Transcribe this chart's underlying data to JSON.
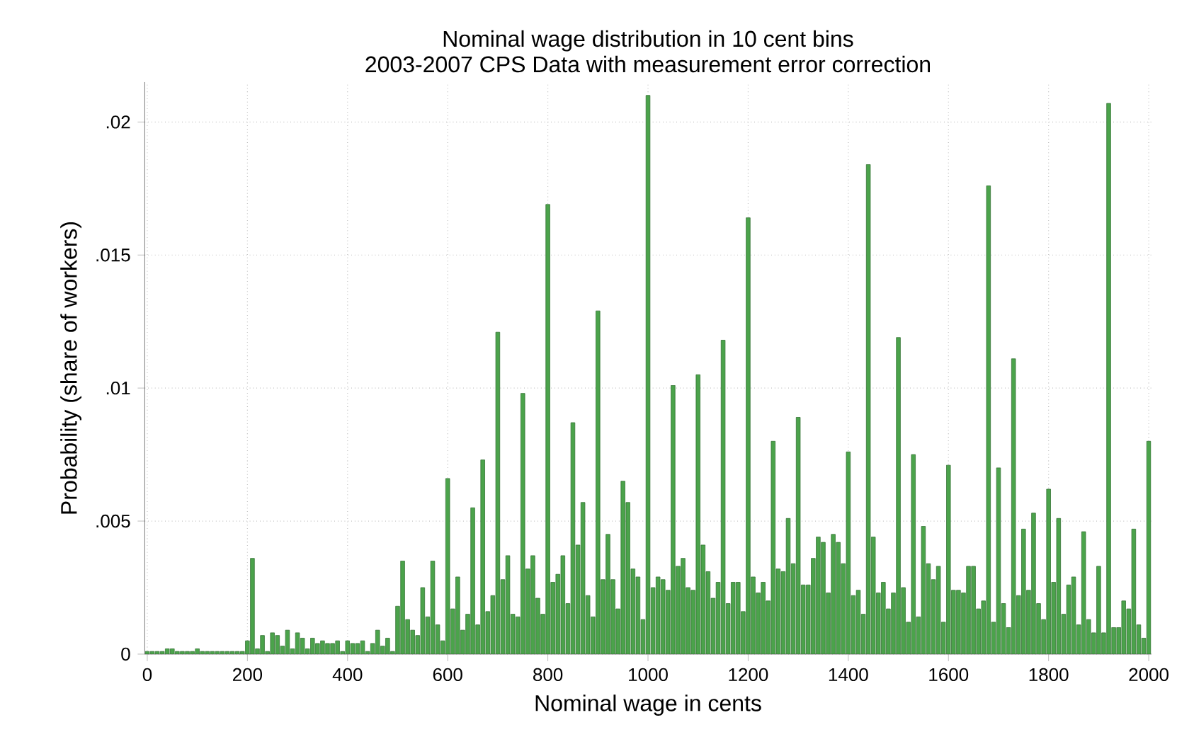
{
  "chart_data": {
    "type": "bar",
    "title": "Nominal wage distribution in 10 cent bins",
    "subtitle": "2003-2007 CPS Data with measurement error correction",
    "xlabel": "Nominal wage in cents",
    "ylabel": "Probability  (share of workers)",
    "x": [
      0,
      10,
      20,
      30,
      40,
      50,
      60,
      70,
      80,
      90,
      100,
      110,
      120,
      130,
      140,
      150,
      160,
      170,
      180,
      190,
      200,
      210,
      220,
      230,
      240,
      250,
      260,
      270,
      280,
      290,
      300,
      310,
      320,
      330,
      340,
      350,
      360,
      370,
      380,
      390,
      400,
      410,
      420,
      430,
      440,
      450,
      460,
      470,
      480,
      490,
      500,
      510,
      520,
      530,
      540,
      550,
      560,
      570,
      580,
      590,
      600,
      610,
      620,
      630,
      640,
      650,
      660,
      670,
      680,
      690,
      700,
      710,
      720,
      730,
      740,
      750,
      760,
      770,
      780,
      790,
      800,
      810,
      820,
      830,
      840,
      850,
      860,
      870,
      880,
      890,
      900,
      910,
      920,
      930,
      940,
      950,
      960,
      970,
      980,
      990,
      1000,
      1010,
      1020,
      1030,
      1040,
      1050,
      1060,
      1070,
      1080,
      1090,
      1100,
      1110,
      1120,
      1130,
      1140,
      1150,
      1160,
      1170,
      1180,
      1190,
      1200,
      1210,
      1220,
      1230,
      1240,
      1250,
      1260,
      1270,
      1280,
      1290,
      1300,
      1310,
      1320,
      1330,
      1340,
      1350,
      1360,
      1370,
      1380,
      1390,
      1400,
      1410,
      1420,
      1430,
      1440,
      1450,
      1460,
      1470,
      1480,
      1490,
      1500,
      1510,
      1520,
      1530,
      1540,
      1550,
      1560,
      1570,
      1580,
      1590,
      1600,
      1610,
      1620,
      1630,
      1640,
      1650,
      1660,
      1670,
      1680,
      1690,
      1700,
      1710,
      1720,
      1730,
      1740,
      1750,
      1760,
      1770,
      1780,
      1790,
      1800,
      1810,
      1820,
      1830,
      1840,
      1850,
      1860,
      1870,
      1880,
      1890,
      1900,
      1910,
      1920,
      1930,
      1940,
      1950,
      1960,
      1970,
      1980,
      1990,
      2000
    ],
    "values": [
      0.0001,
      0.0001,
      0.0001,
      0.0001,
      0.0002,
      0.0002,
      0.0001,
      0.0001,
      0.0001,
      0.0001,
      0.0002,
      0.0001,
      0.0001,
      0.0001,
      0.0001,
      0.0001,
      0.0001,
      0.0001,
      0.0001,
      0.0001,
      0.0005,
      0.0036,
      0.0002,
      0.0007,
      0.0001,
      0.0008,
      0.0007,
      0.0003,
      0.0009,
      0.0002,
      0.0008,
      0.0006,
      0.0002,
      0.0006,
      0.0004,
      0.0005,
      0.0004,
      0.0004,
      0.0005,
      0.0001,
      0.0005,
      0.0004,
      0.0004,
      0.0005,
      0.0001,
      0.0004,
      0.0009,
      0.0003,
      0.0006,
      0.0001,
      0.0018,
      0.0035,
      0.0013,
      0.0009,
      0.0007,
      0.0025,
      0.0014,
      0.0035,
      0.0011,
      0.0005,
      0.0066,
      0.0017,
      0.0029,
      0.0009,
      0.0015,
      0.0055,
      0.0011,
      0.0073,
      0.0016,
      0.0022,
      0.0121,
      0.0028,
      0.0037,
      0.0015,
      0.0014,
      0.0098,
      0.0032,
      0.0037,
      0.0021,
      0.0015,
      0.0169,
      0.0027,
      0.003,
      0.0037,
      0.0019,
      0.0087,
      0.0041,
      0.0057,
      0.0022,
      0.0014,
      0.0129,
      0.0028,
      0.0045,
      0.0028,
      0.0017,
      0.0065,
      0.0057,
      0.0032,
      0.0029,
      0.0013,
      0.021,
      0.0025,
      0.0029,
      0.0028,
      0.0024,
      0.0101,
      0.0033,
      0.0036,
      0.0025,
      0.0024,
      0.0105,
      0.0041,
      0.0031,
      0.0021,
      0.0027,
      0.0118,
      0.0019,
      0.0027,
      0.0027,
      0.0016,
      0.0164,
      0.0029,
      0.0023,
      0.0027,
      0.002,
      0.008,
      0.0032,
      0.0031,
      0.0051,
      0.0034,
      0.0089,
      0.0026,
      0.0026,
      0.0036,
      0.0044,
      0.0042,
      0.0023,
      0.0045,
      0.0042,
      0.0034,
      0.0076,
      0.0022,
      0.0024,
      0.0015,
      0.0184,
      0.0044,
      0.0023,
      0.0027,
      0.0017,
      0.0023,
      0.0119,
      0.0025,
      0.0012,
      0.0075,
      0.0014,
      0.0048,
      0.0034,
      0.0028,
      0.0033,
      0.0012,
      0.0071,
      0.0024,
      0.0024,
      0.0023,
      0.0033,
      0.0033,
      0.0017,
      0.002,
      0.0176,
      0.0012,
      0.007,
      0.0019,
      0.001,
      0.0111,
      0.0022,
      0.0047,
      0.0024,
      0.0053,
      0.0019,
      0.0013,
      0.0062,
      0.0027,
      0.0051,
      0.0015,
      0.0026,
      0.0029,
      0.0011,
      0.0046,
      0.0013,
      0.0008,
      0.0033,
      0.0008,
      0.0207,
      0.001,
      0.001,
      0.002,
      0.0017,
      0.0047,
      0.0011,
      0.0006,
      0.008
    ],
    "color": "#4ba34b",
    "xlim": [
      -5,
      2005
    ],
    "ylim": [
      0,
      0.0215
    ],
    "xticks": [
      0,
      200,
      400,
      600,
      800,
      1000,
      1200,
      1400,
      1600,
      1800,
      2000
    ],
    "yticks": [
      0,
      {
        "value": 0.005,
        "label": ".005"
      },
      {
        "value": 0.01,
        "label": ".01"
      },
      {
        "value": 0.015,
        "label": ".015"
      },
      {
        "value": 0.02,
        "label": ".02"
      }
    ],
    "grid": true
  }
}
